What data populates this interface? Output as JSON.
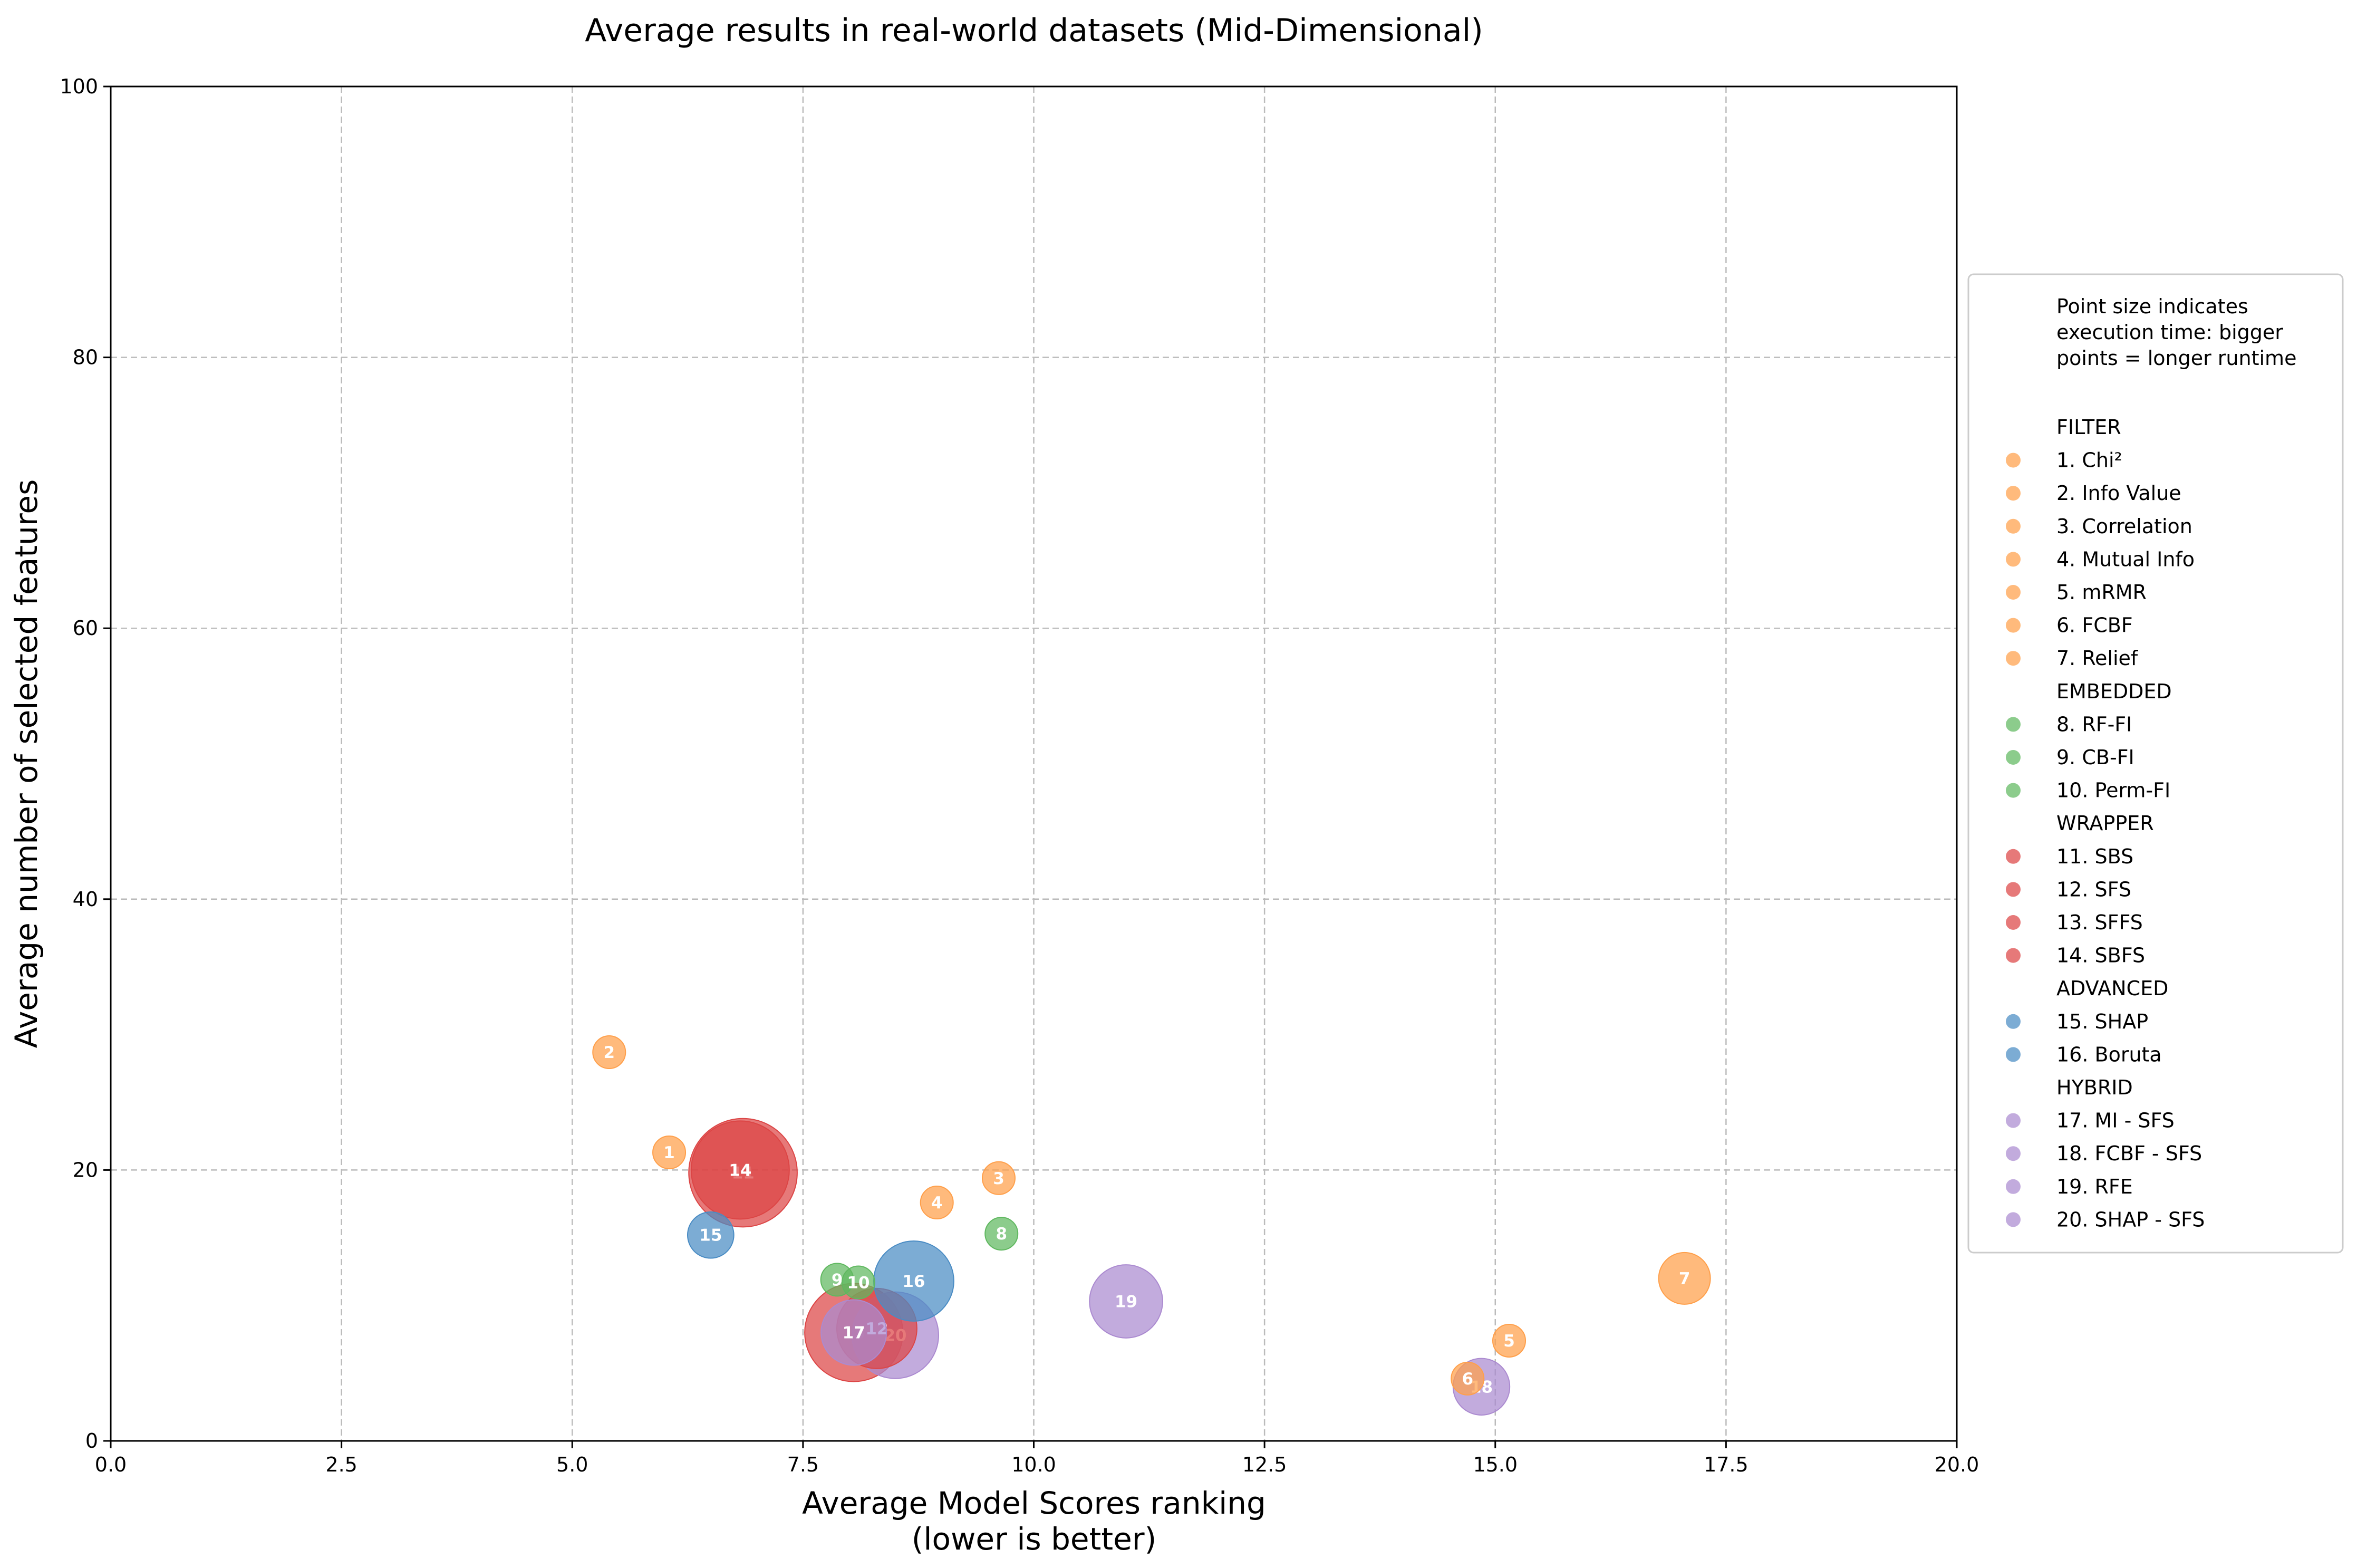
{
  "chart_data": {
    "type": "scatter",
    "title": "Average results in real-world datasets (Mid-Dimensional)",
    "xlabel": "Average Model Scores ranking",
    "xlabel_line2": "(lower is better)",
    "ylabel": "Average number of selected features",
    "xlim": [
      0,
      20
    ],
    "ylim": [
      0,
      100
    ],
    "xticks": [
      "0.0",
      "2.5",
      "5.0",
      "7.5",
      "10.0",
      "12.5",
      "15.0",
      "17.5",
      "20.0"
    ],
    "yticks": [
      "0",
      "20",
      "40",
      "60",
      "80",
      "100"
    ],
    "grid": true,
    "legend_position": "right",
    "legend_note": [
      "Point size indicates",
      "execution time: bigger",
      "points = longer runtime"
    ],
    "colors": {
      "FILTER": "#ff9f4a",
      "EMBEDDED": "#5fb85f",
      "WRAPPER": "#dc4545",
      "ADVANCED": "#4a8cc4",
      "HYBRID": "#ab8ad0"
    },
    "groups": [
      {
        "name": "FILTER",
        "items": [
          "1. Chi²",
          "2. Info Value",
          "3. Correlation",
          "4. Mutual Info",
          "5. mRMR",
          "6. FCBF",
          "7. Relief"
        ]
      },
      {
        "name": "EMBEDDED",
        "items": [
          "8. RF-FI",
          "9. CB-FI",
          "10. Perm-FI"
        ]
      },
      {
        "name": "WRAPPER",
        "items": [
          "11. SBS",
          "12. SFS",
          "13. SFFS",
          "14. SBFS"
        ]
      },
      {
        "name": "ADVANCED",
        "items": [
          "15. SHAP",
          "16. Boruta"
        ]
      },
      {
        "name": "HYBRID",
        "items": [
          "17. MI - SFS",
          "18. FCBF - SFS",
          "19. RFE",
          "20. SHAP - SFS"
        ]
      }
    ],
    "points": [
      {
        "label": "1",
        "group": "FILTER",
        "x": 6.05,
        "y": 21.3,
        "size": 1
      },
      {
        "label": "2",
        "group": "FILTER",
        "x": 5.4,
        "y": 28.7,
        "size": 1
      },
      {
        "label": "3",
        "group": "FILTER",
        "x": 9.62,
        "y": 19.4,
        "size": 1
      },
      {
        "label": "4",
        "group": "FILTER",
        "x": 8.95,
        "y": 17.6,
        "size": 1
      },
      {
        "label": "5",
        "group": "FILTER",
        "x": 15.15,
        "y": 7.4,
        "size": 1
      },
      {
        "label": "6",
        "group": "FILTER",
        "x": 14.7,
        "y": 4.6,
        "size": 1
      },
      {
        "label": "7",
        "group": "FILTER",
        "x": 17.05,
        "y": 12.0,
        "size": 2.5
      },
      {
        "label": "8",
        "group": "EMBEDDED",
        "x": 9.65,
        "y": 15.3,
        "size": 1
      },
      {
        "label": "9",
        "group": "EMBEDDED",
        "x": 7.87,
        "y": 11.9,
        "size": 1
      },
      {
        "label": "10",
        "group": "EMBEDDED",
        "x": 8.1,
        "y": 11.7,
        "size": 1
      },
      {
        "label": "11",
        "group": "WRAPPER",
        "x": 6.85,
        "y": 19.8,
        "size": 11
      },
      {
        "label": "12",
        "group": "WRAPPER",
        "x": 8.3,
        "y": 8.3,
        "size": 6
      },
      {
        "label": "13",
        "group": "WRAPPER",
        "x": 8.05,
        "y": 8.0,
        "size": 9
      },
      {
        "label": "14",
        "group": "WRAPPER",
        "x": 6.82,
        "y": 20.0,
        "size": 9
      },
      {
        "label": "15",
        "group": "ADVANCED",
        "x": 6.5,
        "y": 15.2,
        "size": 2
      },
      {
        "label": "16",
        "group": "ADVANCED",
        "x": 8.7,
        "y": 11.8,
        "size": 6
      },
      {
        "label": "17",
        "group": "HYBRID",
        "x": 8.05,
        "y": 8.0,
        "size": 4
      },
      {
        "label": "18",
        "group": "HYBRID",
        "x": 14.85,
        "y": 4.0,
        "size": 3
      },
      {
        "label": "19",
        "group": "HYBRID",
        "x": 11.0,
        "y": 10.3,
        "size": 5
      },
      {
        "label": "20",
        "group": "HYBRID",
        "x": 8.5,
        "y": 7.8,
        "size": 7
      }
    ]
  }
}
